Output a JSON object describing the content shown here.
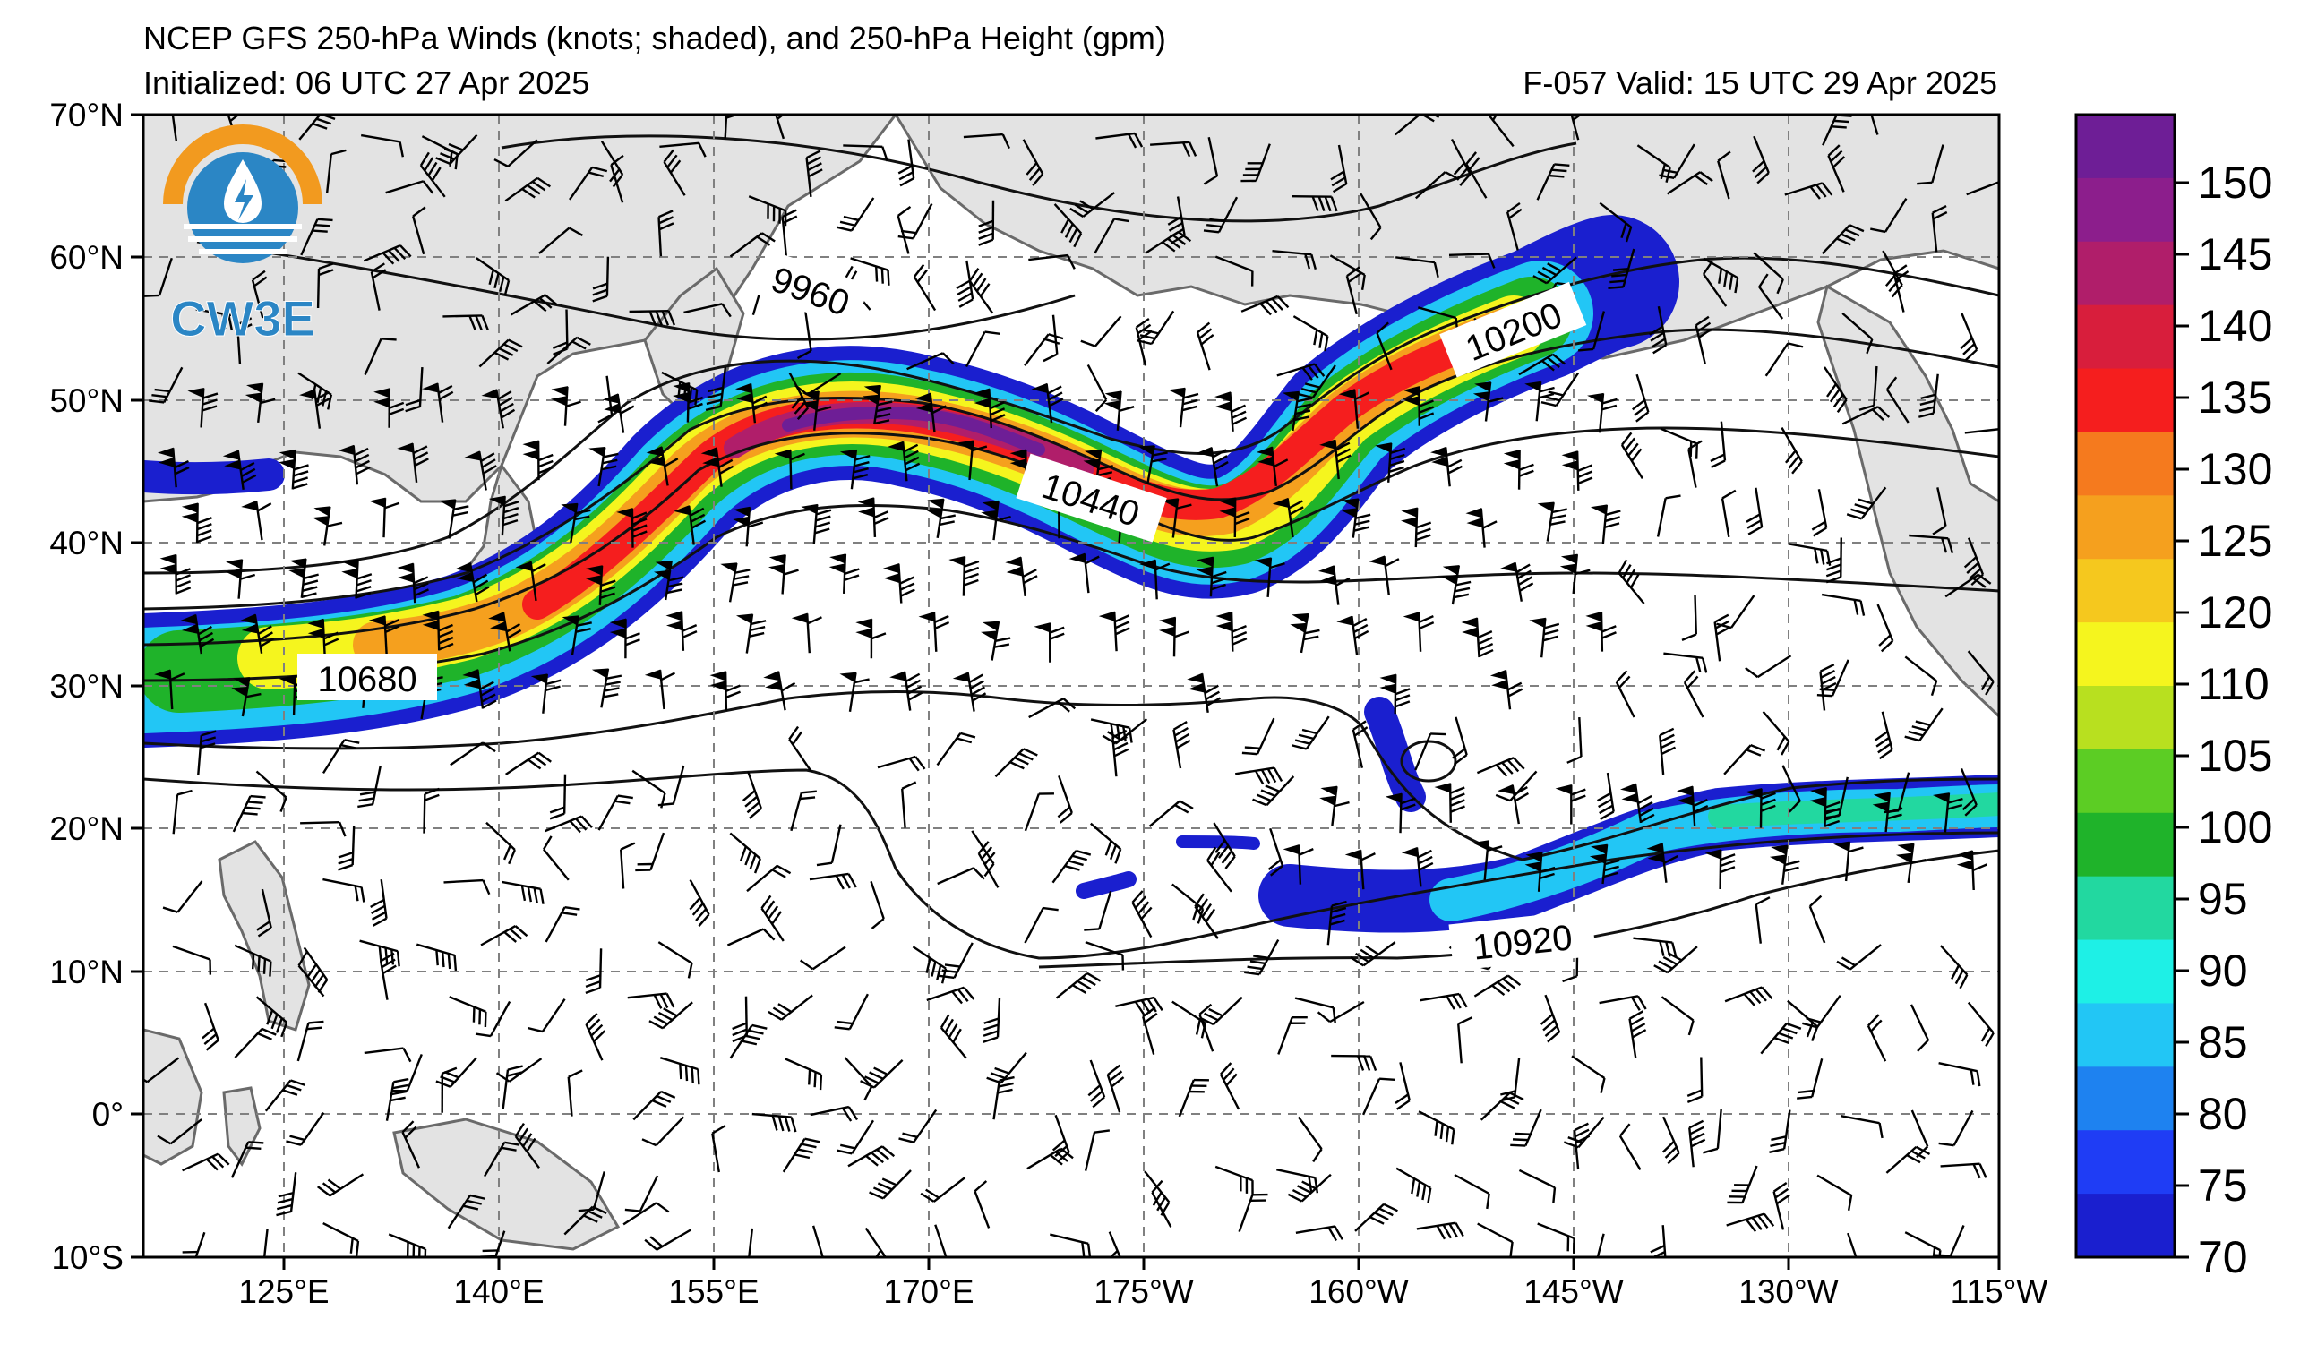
{
  "header": {
    "title": "NCEP GFS 250-hPa Winds (knots; shaded), and 250-hPa Height (gpm)",
    "initialized": "Initialized: 06 UTC 27 Apr 2025",
    "valid": "F-057  Valid: 15 UTC 29 Apr 2025"
  },
  "logo": {
    "text": "CW3E",
    "colors": {
      "ring": "#f29a1f",
      "blue": "#2b86c5"
    }
  },
  "map": {
    "lon_labels": [
      "125°E",
      "140°E",
      "155°E",
      "170°E",
      "175°W",
      "160°W",
      "145°W",
      "130°W",
      "115°W"
    ],
    "lat_labels": [
      "70°N",
      "60°N",
      "50°N",
      "40°N",
      "30°N",
      "20°N",
      "10°N",
      "0°",
      "10°S"
    ],
    "land_color": "#e3e3e3",
    "grid": "dashed"
  },
  "contours": {
    "labels": [
      "9960",
      "10200",
      "10440",
      "10680",
      "10920"
    ]
  },
  "colorbar": {
    "labels": [
      "70",
      "75",
      "80",
      "85",
      "90",
      "95",
      "100",
      "105",
      "110",
      "120",
      "125",
      "130",
      "135",
      "140",
      "145",
      "150"
    ],
    "colors": [
      "#1a1fcf",
      "#1f3df5",
      "#1e82f0",
      "#22c6f5",
      "#1ef0e6",
      "#22d8a0",
      "#1fb32a",
      "#5ccd24",
      "#b8e01f",
      "#f5f51e",
      "#f5c81e",
      "#f5a01e",
      "#f57a1e",
      "#f51e1e",
      "#d81e3c",
      "#b01e6a",
      "#8c1e8c",
      "#6e1e96"
    ]
  }
}
